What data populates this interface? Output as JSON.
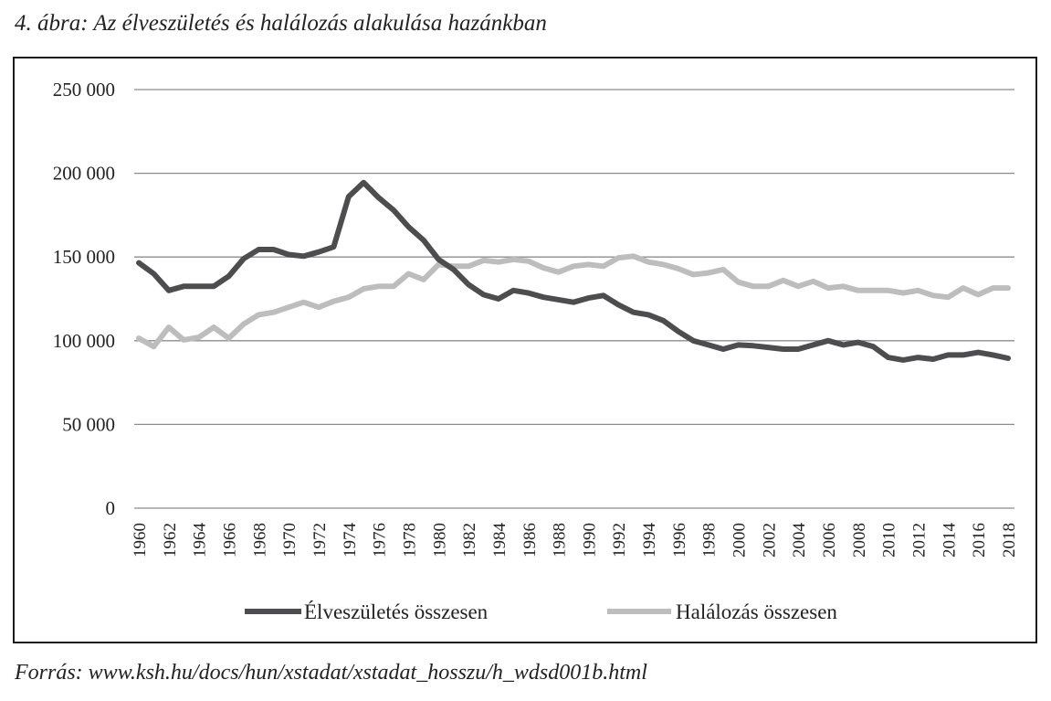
{
  "title": "4. ábra: Az élveszületés és halálozás alakulása hazánkban",
  "source": "Forrás: www.ksh.hu/docs/hun/xstadat/xstadat_hosszu/h_wdsd001b.html",
  "chart_data": {
    "type": "line",
    "x": [
      1960,
      1961,
      1962,
      1963,
      1964,
      1965,
      1966,
      1967,
      1968,
      1969,
      1970,
      1971,
      1972,
      1973,
      1974,
      1975,
      1976,
      1977,
      1978,
      1979,
      1980,
      1981,
      1982,
      1983,
      1984,
      1985,
      1986,
      1987,
      1988,
      1989,
      1990,
      1991,
      1992,
      1993,
      1994,
      1995,
      1996,
      1997,
      1998,
      1999,
      2000,
      2001,
      2002,
      2003,
      2004,
      2005,
      2006,
      2007,
      2008,
      2009,
      2010,
      2011,
      2012,
      2013,
      2014,
      2015,
      2016,
      2017,
      2018
    ],
    "x_tick_labels": [
      "1960",
      "1962",
      "1964",
      "1966",
      "1968",
      "1970",
      "1972",
      "1974",
      "1976",
      "1978",
      "1980",
      "1982",
      "1984",
      "1986",
      "1988",
      "1990",
      "1992",
      "1994",
      "1996",
      "1998",
      "2000",
      "2002",
      "2004",
      "2006",
      "2008",
      "2010",
      "2012",
      "2014",
      "2016",
      "2018"
    ],
    "y_tick_labels": [
      "0",
      "50 000",
      "100 000",
      "150 000",
      "200 000",
      "250 000"
    ],
    "ylim": [
      0,
      250000
    ],
    "grid": true,
    "legend_position": "bottom",
    "series": [
      {
        "name": "Élveszületés  összesen",
        "color": "#4d4d4f",
        "values": [
          146500,
          140000,
          130000,
          132500,
          132500,
          132500,
          138500,
          149000,
          154500,
          154500,
          151500,
          150500,
          153000,
          156000,
          186000,
          194500,
          185500,
          178000,
          168000,
          160000,
          148500,
          142500,
          133500,
          127500,
          125000,
          130000,
          128500,
          126000,
          124500,
          123000,
          125500,
          127000,
          121500,
          117000,
          115500,
          112000,
          105500,
          100000,
          97500,
          95000,
          97500,
          97000,
          96000,
          95000,
          95000,
          97500,
          100000,
          97500,
          99000,
          96500,
          90000,
          88500,
          90000,
          89000,
          91500,
          91500,
          93000,
          91500,
          89500
        ]
      },
      {
        "name": "Halálozás összesen",
        "color": "#bdbdbd",
        "values": [
          101500,
          96500,
          108000,
          100500,
          102000,
          108000,
          101500,
          110000,
          115500,
          117000,
          120000,
          123000,
          120000,
          123500,
          126000,
          131000,
          132500,
          132500,
          140000,
          136500,
          145500,
          144500,
          144500,
          148000,
          147000,
          148500,
          147500,
          143500,
          141000,
          144500,
          145500,
          144500,
          149500,
          150500,
          147000,
          145500,
          143000,
          139500,
          140500,
          142500,
          135000,
          132500,
          132500,
          136000,
          132500,
          135500,
          131500,
          132500,
          130000,
          130000,
          130000,
          128500,
          130000,
          127000,
          126000,
          131500,
          127500,
          131500,
          131500
        ]
      }
    ]
  }
}
